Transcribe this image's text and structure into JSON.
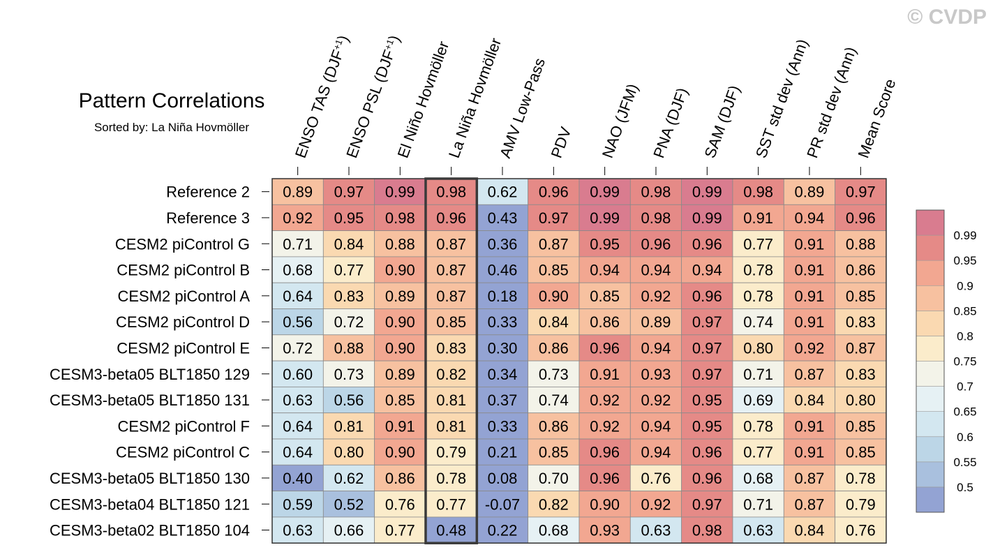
{
  "watermark": "© CVDP",
  "chart_data": {
    "type": "heatmap",
    "title": "Pattern Correlations",
    "subtitle": "Sorted by: La Niña Hovmöller",
    "columns": [
      {
        "label": "ENSO TAS (DJF",
        "sup": "+1",
        "tail": ")"
      },
      {
        "label": "ENSO PSL (DJF",
        "sup": "+1",
        "tail": ")"
      },
      {
        "label": "El Niño Hovmöller"
      },
      {
        "label": "La Niña Hovmöller"
      },
      {
        "label": "AMV Low-Pass"
      },
      {
        "label": "PDV"
      },
      {
        "label": "NAO (JFM)"
      },
      {
        "label": "PNA (DJF)"
      },
      {
        "label": "SAM (DJF)"
      },
      {
        "label": "SST std dev (Ann)"
      },
      {
        "label": "PR std dev (Ann)"
      },
      {
        "label": "Mean Score"
      }
    ],
    "highlight_column": 3,
    "rows": [
      "Reference 2",
      "Reference 3",
      "CESM2 piControl G",
      "CESM2 piControl B",
      "CESM2 piControl A",
      "CESM2 piControl D",
      "CESM2 piControl E",
      "CESM3-beta05 BLT1850 129",
      "CESM3-beta05 BLT1850 131",
      "CESM2 piControl F",
      "CESM2 piControl C",
      "CESM3-beta05 BLT1850 130",
      "CESM3-beta04 BLT1850 121",
      "CESM3-beta02 BLT1850 104"
    ],
    "values": [
      [
        "0.89",
        "0.97",
        "0.99",
        "0.98",
        "0.62",
        "0.96",
        "0.99",
        "0.98",
        "0.99",
        "0.98",
        "0.89",
        "0.97"
      ],
      [
        "0.92",
        "0.95",
        "0.98",
        "0.96",
        "0.43",
        "0.97",
        "0.99",
        "0.98",
        "0.99",
        "0.91",
        "0.94",
        "0.96"
      ],
      [
        "0.71",
        "0.84",
        "0.88",
        "0.87",
        "0.36",
        "0.87",
        "0.95",
        "0.96",
        "0.96",
        "0.77",
        "0.91",
        "0.88"
      ],
      [
        "0.68",
        "0.77",
        "0.90",
        "0.87",
        "0.46",
        "0.85",
        "0.94",
        "0.94",
        "0.94",
        "0.78",
        "0.91",
        "0.86"
      ],
      [
        "0.64",
        "0.83",
        "0.89",
        "0.87",
        "0.18",
        "0.90",
        "0.85",
        "0.92",
        "0.96",
        "0.78",
        "0.91",
        "0.85"
      ],
      [
        "0.56",
        "0.72",
        "0.90",
        "0.85",
        "0.33",
        "0.84",
        "0.86",
        "0.89",
        "0.97",
        "0.74",
        "0.91",
        "0.83"
      ],
      [
        "0.72",
        "0.88",
        "0.90",
        "0.83",
        "0.30",
        "0.86",
        "0.96",
        "0.94",
        "0.97",
        "0.80",
        "0.92",
        "0.87"
      ],
      [
        "0.60",
        "0.73",
        "0.89",
        "0.82",
        "0.34",
        "0.73",
        "0.91",
        "0.93",
        "0.97",
        "0.71",
        "0.87",
        "0.83"
      ],
      [
        "0.63",
        "0.56",
        "0.85",
        "0.81",
        "0.37",
        "0.74",
        "0.92",
        "0.92",
        "0.95",
        "0.69",
        "0.84",
        "0.80"
      ],
      [
        "0.64",
        "0.81",
        "0.91",
        "0.81",
        "0.33",
        "0.86",
        "0.92",
        "0.94",
        "0.95",
        "0.78",
        "0.91",
        "0.85"
      ],
      [
        "0.64",
        "0.80",
        "0.90",
        "0.79",
        "0.21",
        "0.85",
        "0.96",
        "0.94",
        "0.96",
        "0.77",
        "0.91",
        "0.85"
      ],
      [
        "0.40",
        "0.62",
        "0.86",
        "0.78",
        "0.08",
        "0.70",
        "0.96",
        "0.76",
        "0.96",
        "0.68",
        "0.87",
        "0.78"
      ],
      [
        "0.59",
        "0.52",
        "0.76",
        "0.77",
        "-0.07",
        "0.82",
        "0.90",
        "0.92",
        "0.97",
        "0.71",
        "0.87",
        "0.79"
      ],
      [
        "0.63",
        "0.66",
        "0.77",
        "0.48",
        "0.22",
        "0.68",
        "0.93",
        "0.63",
        "0.98",
        "0.63",
        "0.84",
        "0.76"
      ]
    ],
    "colorbar": {
      "levels": [
        "0.5",
        "0.55",
        "0.6",
        "0.65",
        "0.7",
        "0.75",
        "0.8",
        "0.85",
        "0.9",
        "0.95",
        "0.99"
      ],
      "colors": [
        "#93a3d3",
        "#a9c0de",
        "#bcd6e7",
        "#d3e7f0",
        "#e6f1f4",
        "#f3f3e9",
        "#fbeccb",
        "#fad9b1",
        "#f7c1a0",
        "#f2a791",
        "#e58a87",
        "#d97c8f"
      ]
    }
  }
}
